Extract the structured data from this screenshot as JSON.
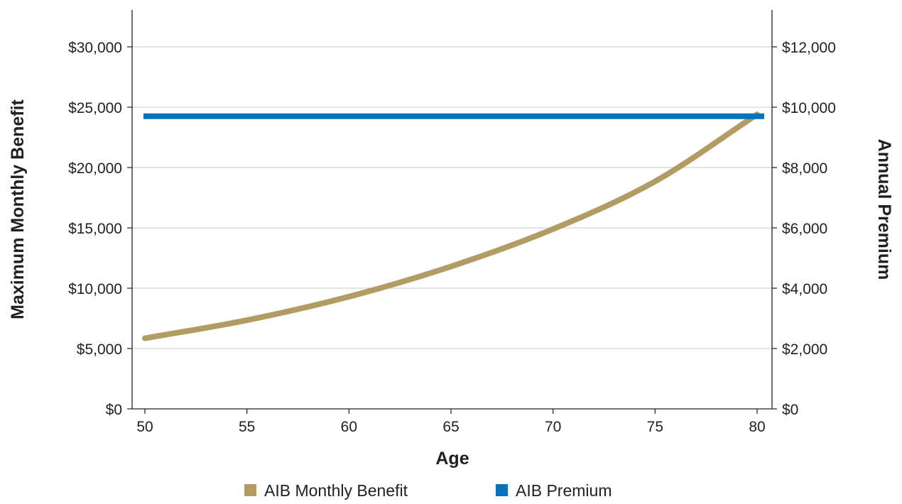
{
  "chart_data": {
    "type": "line",
    "title": "",
    "xlabel": "Age",
    "ylabel": "Maximum Monthly Benefit",
    "y2label": "Annual Premium",
    "xlim": [
      49.4,
      80.8
    ],
    "ylim": [
      0,
      30000
    ],
    "y2lim": [
      0,
      12000
    ],
    "x_ticks": [
      50,
      55,
      60,
      65,
      70,
      75,
      80
    ],
    "x_tick_labels": [
      "50",
      "55",
      "60",
      "65",
      "70",
      "75",
      "80"
    ],
    "y_ticks": [
      0,
      5000,
      10000,
      15000,
      20000,
      25000,
      30000
    ],
    "y_tick_labels": [
      "$0",
      "$5,000",
      "$10,000",
      "$15,000",
      "$20,000",
      "$25,000",
      "$30,000"
    ],
    "y2_ticks": [
      0,
      2000,
      4000,
      6000,
      8000,
      10000,
      12000
    ],
    "y2_tick_labels": [
      "$0",
      "$2,000",
      "$4,000",
      "$6,000",
      "$8,000",
      "$10,000",
      "$12,000"
    ],
    "grid": "horizontal",
    "legend_position": "bottom",
    "x": [
      50,
      55,
      60,
      65,
      70,
      75,
      80
    ],
    "series": [
      {
        "name": "AIB Monthly Benefit",
        "axis": "left",
        "color": "#b39c64",
        "values": [
          5850,
          7350,
          9300,
          11800,
          14900,
          18850,
          24400
        ]
      },
      {
        "name": "AIB Premium",
        "axis": "right",
        "color": "#0873bb",
        "values": [
          9700,
          9700,
          9700,
          9700,
          9700,
          9700,
          9700
        ]
      }
    ]
  }
}
